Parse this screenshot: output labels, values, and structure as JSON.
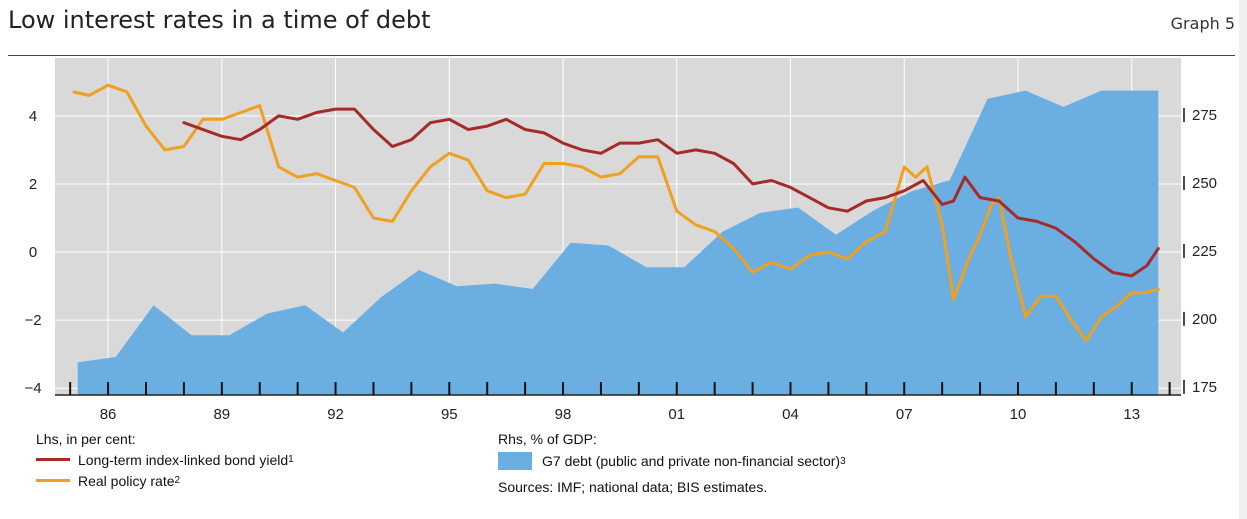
{
  "header": {
    "title": "Low interest rates in a time of debt",
    "graph_label": "Graph 5"
  },
  "legend": {
    "lhs_heading": "Lhs, in per cent:",
    "rhs_heading": "Rhs, % of GDP:",
    "series1_label": "Long-term index-linked bond yield",
    "series1_note": "1",
    "series2_label": "Real policy rate",
    "series2_note": "2",
    "series3_label": "G7 debt (public and private non-financial sector)",
    "series3_note": "3",
    "sources": "Sources: IMF; national data; BIS estimates."
  },
  "colors": {
    "bond_yield": "#a52a2a",
    "policy_rate": "#f0a020",
    "debt": "#6aaee2",
    "plot_bg": "#d9d9d9"
  },
  "chart_data": {
    "type": "line+area",
    "x_tick_labels": [
      "86",
      "89",
      "92",
      "95",
      "98",
      "01",
      "04",
      "07",
      "10",
      "13"
    ],
    "x_tick_years": [
      1986,
      1989,
      1992,
      1995,
      1998,
      2001,
      2004,
      2007,
      2010,
      2013
    ],
    "xlim": [
      1984.6,
      2014.3
    ],
    "ylim_left": [
      -4.2,
      5.7
    ],
    "ylim_right": [
      172,
      296
    ],
    "y_left_ticks": [
      4,
      2,
      0,
      -2,
      -4
    ],
    "y_left_tick_labels": [
      "4",
      "2",
      "0",
      "−2",
      "−4"
    ],
    "y_right_ticks": [
      275,
      250,
      225,
      200,
      175
    ],
    "y_right_tick_labels": [
      "275",
      "250",
      "225",
      "200",
      "175"
    ],
    "grid": true,
    "series": [
      {
        "name": "G7 debt (public and private non-financial sector)",
        "axis": "right",
        "type": "area",
        "x": [
          1985.2,
          1986.2,
          1987.2,
          1988.2,
          1989.2,
          1990.2,
          1991.2,
          1992.2,
          1993.2,
          1994.2,
          1995.2,
          1996.2,
          1997.2,
          1998.2,
          1999.2,
          2000.2,
          2001.2,
          2002.2,
          2003.2,
          2004.2,
          2005.2,
          2006.2,
          2007.2,
          2008.2,
          2009.2,
          2010.2,
          2011.2,
          2012.2,
          2013.2,
          2013.7
        ],
        "values": [
          184,
          186,
          205,
          194,
          194,
          202,
          205,
          195,
          208,
          218,
          212,
          213,
          211,
          228,
          227,
          219,
          219,
          232,
          239,
          241,
          231,
          240,
          247,
          251,
          281,
          284,
          278,
          284,
          284,
          284
        ]
      },
      {
        "name": "Long-term index-linked bond yield",
        "axis": "left",
        "type": "line",
        "x": [
          1988.0,
          1988.5,
          1989.0,
          1989.5,
          1990.0,
          1990.5,
          1991.0,
          1991.5,
          1992.0,
          1992.5,
          1993.0,
          1993.5,
          1994.0,
          1994.5,
          1995.0,
          1995.5,
          1996.0,
          1996.5,
          1997.0,
          1997.5,
          1998.0,
          1998.5,
          1999.0,
          1999.5,
          2000.0,
          2000.5,
          2001.0,
          2001.5,
          2002.0,
          2002.5,
          2003.0,
          2003.5,
          2004.0,
          2004.5,
          2005.0,
          2005.5,
          2006.0,
          2006.5,
          2007.0,
          2007.5,
          2008.0,
          2008.3,
          2008.6,
          2009.0,
          2009.5,
          2010.0,
          2010.5,
          2011.0,
          2011.5,
          2012.0,
          2012.5,
          2013.0,
          2013.4,
          2013.7
        ],
        "values": [
          3.8,
          3.6,
          3.4,
          3.3,
          3.6,
          4.0,
          3.9,
          4.1,
          4.2,
          4.2,
          3.6,
          3.1,
          3.3,
          3.8,
          3.9,
          3.6,
          3.7,
          3.9,
          3.6,
          3.5,
          3.2,
          3.0,
          2.9,
          3.2,
          3.2,
          3.3,
          2.9,
          3.0,
          2.9,
          2.6,
          2.0,
          2.1,
          1.9,
          1.6,
          1.3,
          1.2,
          1.5,
          1.6,
          1.8,
          2.1,
          1.4,
          1.5,
          2.2,
          1.6,
          1.5,
          1.0,
          0.9,
          0.7,
          0.3,
          -0.2,
          -0.6,
          -0.7,
          -0.4,
          0.1
        ]
      },
      {
        "name": "Real policy rate",
        "axis": "left",
        "type": "line",
        "x": [
          1985.1,
          1985.5,
          1986.0,
          1986.5,
          1987.0,
          1987.5,
          1988.0,
          1988.5,
          1989.0,
          1989.5,
          1990.0,
          1990.5,
          1991.0,
          1991.5,
          1992.0,
          1992.5,
          1993.0,
          1993.5,
          1994.0,
          1994.5,
          1995.0,
          1995.5,
          1996.0,
          1996.5,
          1997.0,
          1997.5,
          1998.0,
          1998.5,
          1999.0,
          1999.5,
          2000.0,
          2000.5,
          2001.0,
          2001.5,
          2002.0,
          2002.5,
          2003.0,
          2003.5,
          2004.0,
          2004.5,
          2005.0,
          2005.5,
          2006.0,
          2006.5,
          2007.0,
          2007.3,
          2007.6,
          2008.0,
          2008.3,
          2008.7,
          2009.0,
          2009.3,
          2009.5,
          2009.8,
          2010.2,
          2010.6,
          2011.0,
          2011.4,
          2011.8,
          2012.2,
          2012.6,
          2013.0,
          2013.3,
          2013.7
        ],
        "values": [
          4.7,
          4.6,
          4.9,
          4.7,
          3.7,
          3.0,
          3.1,
          3.9,
          3.9,
          4.1,
          4.3,
          2.5,
          2.2,
          2.3,
          2.1,
          1.9,
          1.0,
          0.9,
          1.8,
          2.5,
          2.9,
          2.7,
          1.8,
          1.6,
          1.7,
          2.6,
          2.6,
          2.5,
          2.2,
          2.3,
          2.8,
          2.8,
          1.2,
          0.8,
          0.6,
          0.1,
          -0.6,
          -0.3,
          -0.5,
          -0.1,
          0.0,
          -0.2,
          0.3,
          0.6,
          2.5,
          2.2,
          2.5,
          0.8,
          -1.4,
          -0.2,
          0.5,
          1.4,
          1.6,
          -0.1,
          -1.9,
          -1.3,
          -1.3,
          -2.0,
          -2.6,
          -1.9,
          -1.6,
          -1.2,
          -1.2,
          -1.1
        ]
      }
    ]
  }
}
